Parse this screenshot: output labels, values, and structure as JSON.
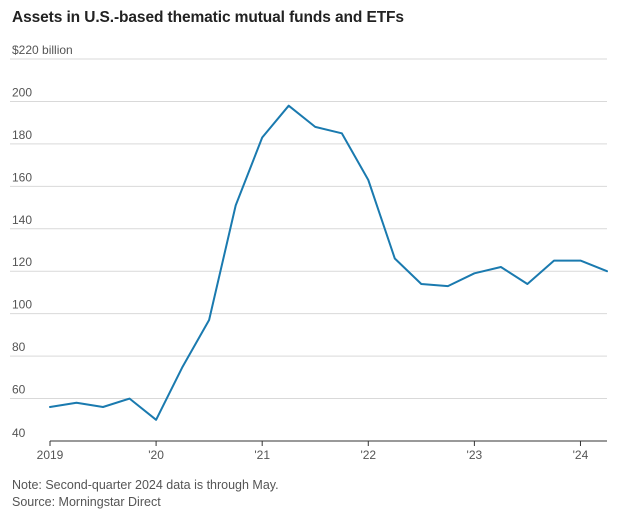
{
  "title": "Assets in U.S.-based thematic mutual funds and ETFs",
  "note": "Note: Second-quarter 2024 data is through May.",
  "source": "Source: Morningstar Direct",
  "colors": {
    "line": "#1a7aaf",
    "grid": "#d9d9d9",
    "axis": "#333333"
  },
  "chart_data": {
    "type": "line",
    "title": "Assets in U.S.-based thematic mutual funds and ETFs",
    "ylabel": "$220 billion",
    "ylim": [
      40,
      220
    ],
    "y_ticks": [
      {
        "value": 220,
        "label": "$220 billion"
      },
      {
        "value": 200,
        "label": "200"
      },
      {
        "value": 180,
        "label": "180"
      },
      {
        "value": 160,
        "label": "160"
      },
      {
        "value": 140,
        "label": "140"
      },
      {
        "value": 120,
        "label": "120"
      },
      {
        "value": 100,
        "label": "100"
      },
      {
        "value": 80,
        "label": "80"
      },
      {
        "value": 60,
        "label": "60"
      },
      {
        "value": 40,
        "label": "40"
      }
    ],
    "x_ticks": [
      {
        "value": 2019.0,
        "label": "2019"
      },
      {
        "value": 2020.0,
        "label": "'20"
      },
      {
        "value": 2021.0,
        "label": "'21"
      },
      {
        "value": 2022.0,
        "label": "'22"
      },
      {
        "value": 2023.0,
        "label": "'23"
      },
      {
        "value": 2024.0,
        "label": "'24"
      }
    ],
    "xlim": [
      2019.0,
      2024.25
    ],
    "series": [
      {
        "name": "Assets",
        "x": [
          2019.0,
          2019.25,
          2019.5,
          2019.75,
          2020.0,
          2020.25,
          2020.5,
          2020.75,
          2021.0,
          2021.25,
          2021.5,
          2021.75,
          2022.0,
          2022.25,
          2022.5,
          2022.75,
          2023.0,
          2023.25,
          2023.5,
          2023.75,
          2024.0,
          2024.25
        ],
        "values": [
          56,
          58,
          56,
          60,
          50,
          75,
          97,
          151,
          183,
          198,
          188,
          185,
          163,
          126,
          114,
          113,
          119,
          122,
          114,
          125,
          125,
          120
        ]
      }
    ]
  }
}
